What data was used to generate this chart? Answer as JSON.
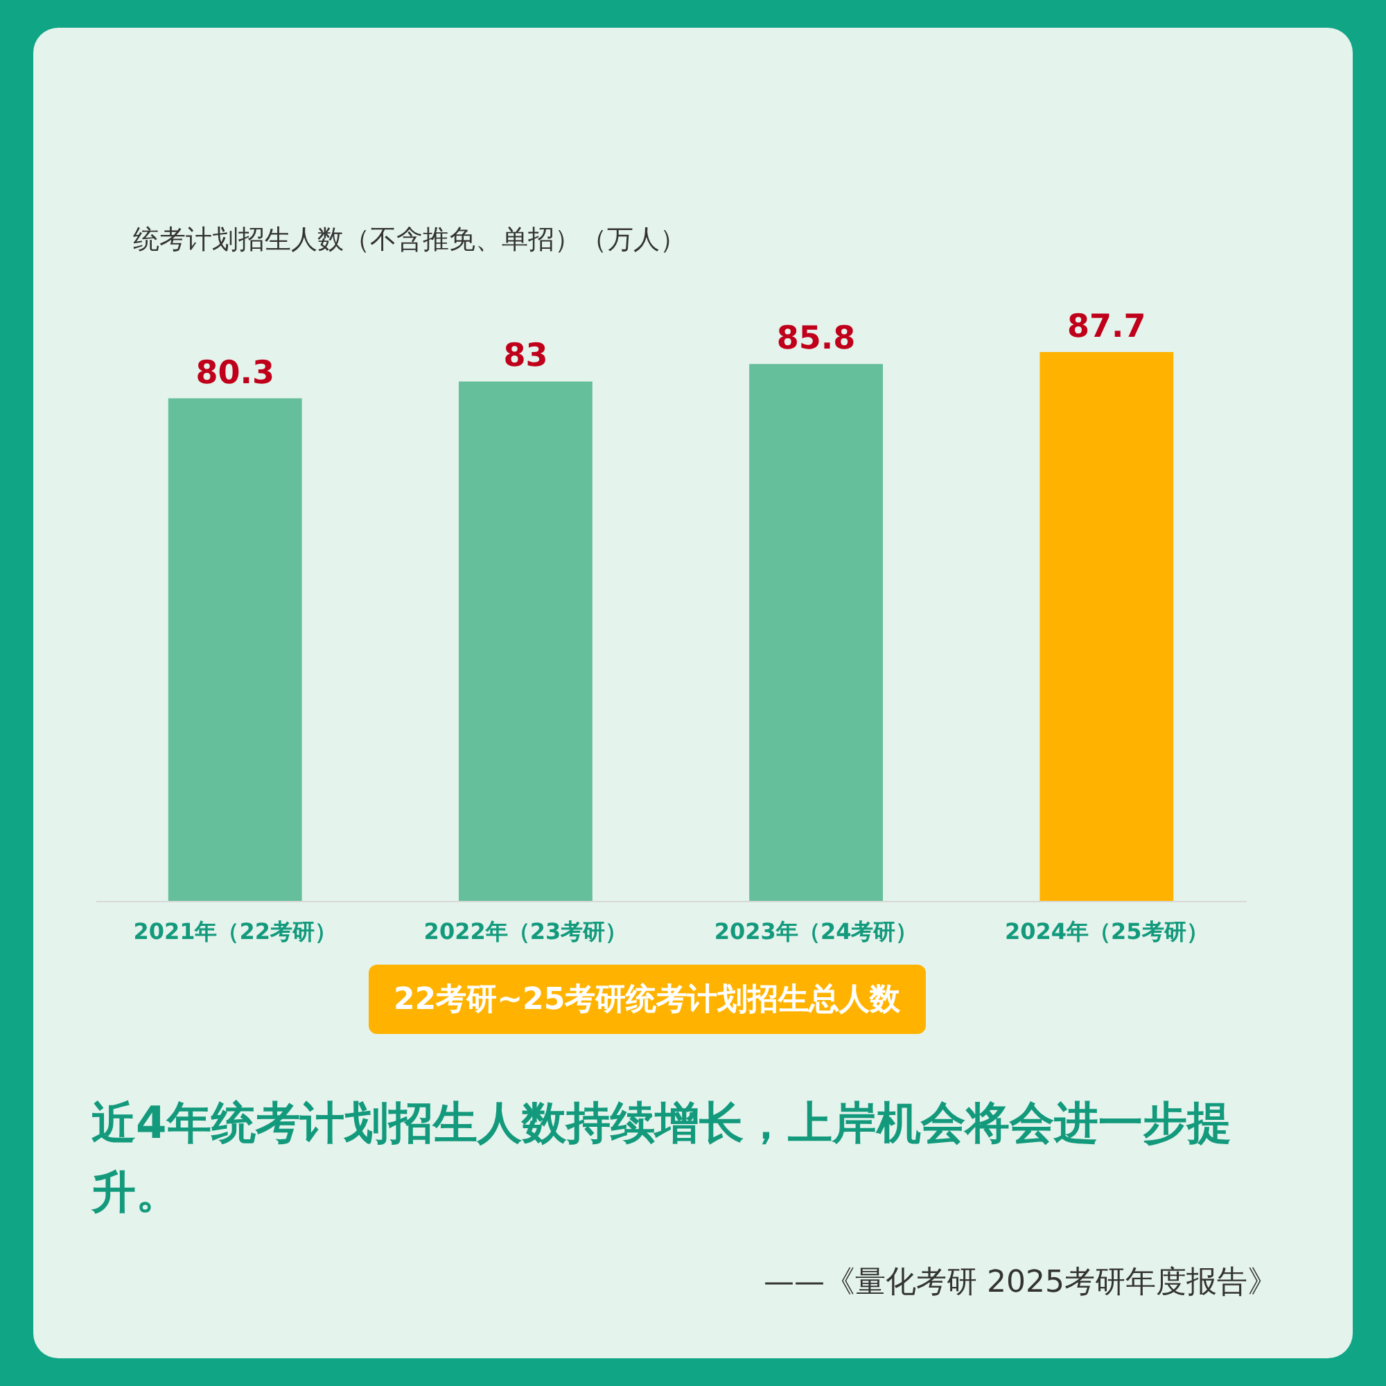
{
  "chart_data": {
    "type": "bar",
    "title": "22考研~25考研统考计划招生总人数",
    "ylabel": "统考计划招生人数（不含推免、单招）（万人）",
    "categories": [
      "2021年（22考研）",
      "2022年（23考研）",
      "2023年（24考研）",
      "2024年（25考研）"
    ],
    "values": [
      80.3,
      83,
      85.8,
      87.7
    ],
    "colors": [
      "#66bf9b",
      "#66bf9b",
      "#66bf9b",
      "#ffb300"
    ],
    "tick_labels": "x",
    "data_labels": true,
    "annotations": [
      "近4年统考计划招生人数持续增长，上岸机会将会进一步提升。",
      "——《量化考研 2025考研年度报告》"
    ]
  }
}
